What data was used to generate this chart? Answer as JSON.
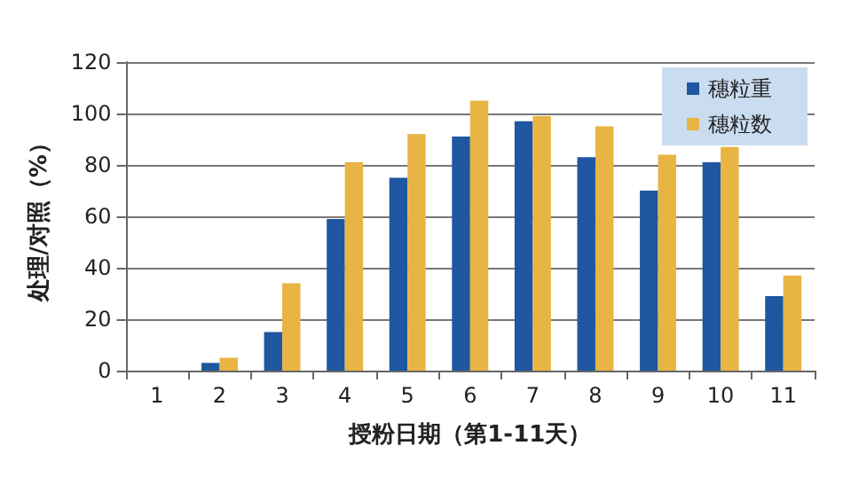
{
  "chart_data": {
    "type": "bar",
    "xlabel": "授粉日期（第1-11天）",
    "ylabel": "处理/对照（%）",
    "categories": [
      "1",
      "2",
      "3",
      "4",
      "5",
      "6",
      "7",
      "8",
      "9",
      "10",
      "11"
    ],
    "series": [
      {
        "name": "穗粒重",
        "color": "#1f57a0",
        "values": [
          0,
          3,
          15,
          59,
          75,
          91,
          97,
          83,
          70,
          81,
          29
        ]
      },
      {
        "name": "穗粒数",
        "color": "#e8b443",
        "values": [
          0,
          5,
          34,
          81,
          92,
          105,
          99,
          95,
          84,
          87,
          37
        ]
      }
    ],
    "ylim": [
      0,
      120
    ],
    "yticks": [
      0,
      20,
      40,
      60,
      80,
      100,
      120
    ],
    "grid": "y",
    "legend": "top right"
  }
}
